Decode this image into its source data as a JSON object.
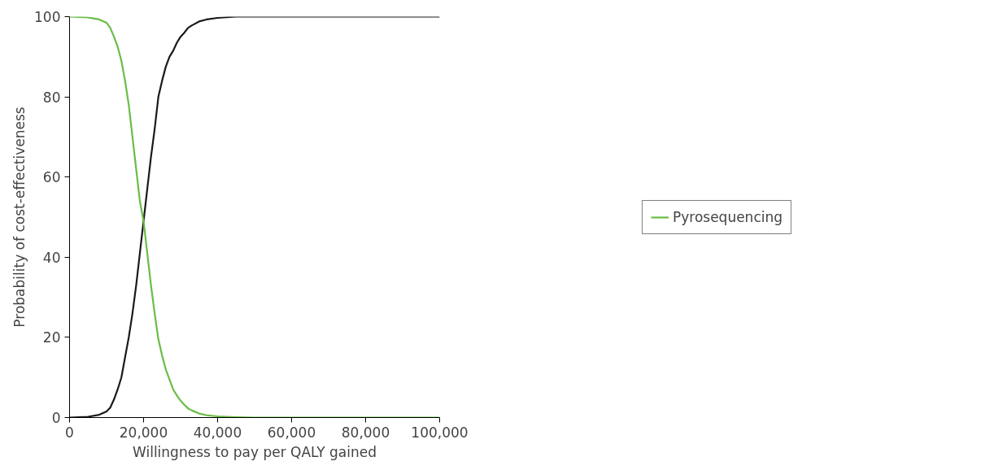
{
  "chart_data": {
    "type": "line",
    "xlabel": "Willingness to pay per QALY gained",
    "ylabel": "Probability of cost-effectiveness",
    "xlim": [
      0,
      100000
    ],
    "xticks": [
      {
        "value": 0,
        "label": "0"
      },
      {
        "value": 20000,
        "label": "20,000"
      },
      {
        "value": 40000,
        "label": "40,000"
      },
      {
        "value": 60000,
        "label": "60,000"
      },
      {
        "value": 80000,
        "label": "80,000"
      },
      {
        "value": 100000,
        "label": "100,000"
      }
    ],
    "ylim": [
      0,
      100
    ],
    "yticks": [
      0,
      20,
      40,
      60,
      80,
      100
    ],
    "grid": false,
    "legend": "right",
    "marker": "none",
    "line_style": "solid",
    "x": [
      0,
      5000,
      8000,
      10000,
      11000,
      12000,
      13000,
      14000,
      15000,
      16000,
      17000,
      18000,
      19000,
      20000,
      21000,
      22000,
      23000,
      24000,
      25000,
      26000,
      27000,
      28000,
      29000,
      30000,
      31000,
      32000,
      33000,
      35000,
      37000,
      40000,
      45000,
      50000,
      100000
    ],
    "series": [
      {
        "color": "#1a1a1a",
        "values": [
          0,
          0.2,
          0.7,
          1.5,
          2.5,
          4.5,
          7,
          10,
          15,
          20,
          26,
          33,
          41,
          49,
          57,
          65,
          72,
          80,
          84,
          87.5,
          90,
          91.5,
          93.5,
          95,
          96,
          97.2,
          97.8,
          98.8,
          99.3,
          99.7,
          100,
          100,
          100
        ]
      },
      {
        "name": "Pyrosequencing",
        "color": "#6abd45",
        "values": [
          100,
          99.8,
          99.3,
          98.5,
          97.2,
          95,
          92.5,
          89,
          84,
          78,
          70,
          62,
          54,
          49,
          41,
          33,
          26,
          19.5,
          15.5,
          12,
          9.5,
          7,
          5.5,
          4.2,
          3.2,
          2.3,
          1.8,
          1,
          0.6,
          0.3,
          0.1,
          0,
          0
        ]
      }
    ]
  }
}
